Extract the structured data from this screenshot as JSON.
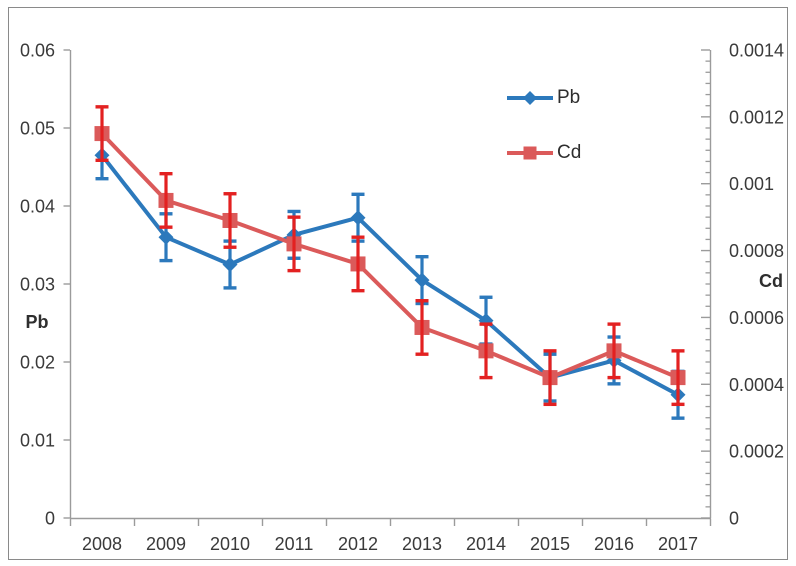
{
  "chart_data": {
    "type": "line",
    "title": "",
    "categories": [
      "2008",
      "2009",
      "2010",
      "2011",
      "2012",
      "2013",
      "2014",
      "2015",
      "2016",
      "2017"
    ],
    "series": [
      {
        "name": "Pb",
        "axis": "left",
        "marker": "diamond",
        "color": "#2C79BC",
        "error_color": "#2C79BC",
        "values": [
          0.0465,
          0.036,
          0.0325,
          0.0363,
          0.0385,
          0.0305,
          0.0253,
          0.018,
          0.0202,
          0.0158
        ],
        "error_bar": 0.003
      },
      {
        "name": "Cd",
        "axis": "right",
        "marker": "square",
        "color": "#DB5A5A",
        "error_color": "#E32121",
        "values": [
          0.00115,
          0.00095,
          0.00089,
          0.00082,
          0.00076,
          0.00057,
          0.0005,
          0.00042,
          0.0005,
          0.00042
        ],
        "error_bar": 8e-05
      }
    ],
    "axes": {
      "left": {
        "label": "Pb",
        "min": 0,
        "max": 0.06,
        "tick_labels": [
          "0.06",
          "0.05",
          "0.04",
          "0.03",
          "0.02",
          "0.01",
          "0"
        ]
      },
      "right": {
        "label": "Cd",
        "min": 0,
        "max": 0.0014,
        "tick_labels": [
          "0.0014",
          "0.0012",
          "0.001",
          "0.0008",
          "0.0006",
          "0.0004",
          "0.0002",
          "0"
        ]
      }
    },
    "legend": {
      "position": "inside-top-right",
      "entries": [
        "Pb",
        "Cd"
      ]
    },
    "grid": false,
    "axis_color": "#9B9B9B",
    "text_color": "#3A3A3A",
    "frame_color": "#8A8A8A"
  }
}
